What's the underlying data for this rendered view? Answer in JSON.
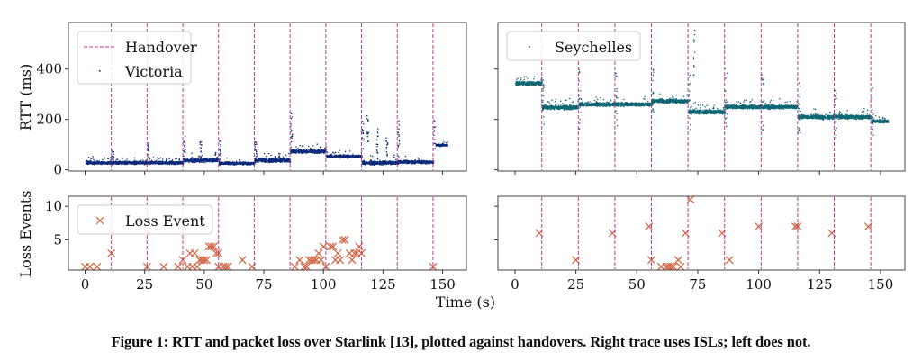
{
  "colors": {
    "handover": "#c0398f",
    "victoria": "#0b2a7a",
    "seychelles": "#0a6673",
    "loss": "#d1603d",
    "axis": "#444444"
  },
  "caption": "Figure 1: RTT and packet loss over Starlink [13], plotted against handovers. Right trace uses ISLs; left does not.",
  "chart_data": [
    {
      "type": "scatter",
      "panel": "top-left",
      "ylabel": "RTT (ms)",
      "xlim": [
        -7,
        160
      ],
      "ylim": [
        -5,
        585
      ],
      "yticks": [
        "0",
        "200",
        "400"
      ],
      "ytick_values": [
        0,
        200,
        400
      ],
      "xtick_values": [
        0,
        25,
        50,
        75,
        100,
        125,
        150
      ],
      "legend": {
        "position": "top-left",
        "entries": [
          "Handover",
          "Victoria"
        ]
      },
      "handovers": [
        11,
        26,
        41,
        56,
        71,
        86,
        101,
        116,
        131,
        146
      ],
      "series": [
        {
          "name": "Victoria",
          "segments": [
            {
              "x0": 0,
              "x1": 41,
              "base": 30,
              "spread": 15
            },
            {
              "x0": 41,
              "x1": 56,
              "base": 40,
              "spread": 20
            },
            {
              "x0": 56,
              "x1": 71,
              "base": 28,
              "spread": 14
            },
            {
              "x0": 71,
              "x1": 86,
              "base": 40,
              "spread": 22
            },
            {
              "x0": 86,
              "x1": 101,
              "base": 75,
              "spread": 18
            },
            {
              "x0": 101,
              "x1": 116,
              "base": 55,
              "spread": 16
            },
            {
              "x0": 116,
              "x1": 131,
              "base": 30,
              "spread": 20
            },
            {
              "x0": 131,
              "x1": 146,
              "base": 33,
              "spread": 16
            },
            {
              "x0": 147,
              "x1": 152,
              "base": 100,
              "spread": 10
            }
          ],
          "spikes": [
            [
              11,
              80
            ],
            [
              26,
              110
            ],
            [
              41,
              140
            ],
            [
              48,
              125
            ],
            [
              56,
              130
            ],
            [
              71,
              115
            ],
            [
              86,
              240
            ],
            [
              116,
              200
            ],
            [
              118,
              220
            ],
            [
              122,
              170
            ],
            [
              126,
              140
            ],
            [
              131,
              230
            ],
            [
              146,
              205
            ]
          ]
        }
      ]
    },
    {
      "type": "scatter",
      "panel": "top-right",
      "xlim": [
        -7,
        160
      ],
      "ylim": [
        -5,
        585
      ],
      "ytick_values": [
        0,
        200,
        400
      ],
      "xtick_values": [
        0,
        25,
        50,
        75,
        100,
        125,
        150
      ],
      "legend": {
        "position": "top-left",
        "entries": [
          "Seychelles"
        ]
      },
      "handovers": [
        11,
        26,
        41,
        56,
        71,
        86,
        101,
        116,
        131,
        146
      ],
      "series": [
        {
          "name": "Seychelles",
          "segments": [
            {
              "x0": 0,
              "x1": 11,
              "base": 345,
              "spread": 22
            },
            {
              "x0": 11,
              "x1": 26,
              "base": 250,
              "spread": 22
            },
            {
              "x0": 26,
              "x1": 56,
              "base": 262,
              "spread": 20
            },
            {
              "x0": 56,
              "x1": 71,
              "base": 275,
              "spread": 20
            },
            {
              "x0": 71,
              "x1": 86,
              "base": 232,
              "spread": 22
            },
            {
              "x0": 86,
              "x1": 116,
              "base": 252,
              "spread": 20
            },
            {
              "x0": 116,
              "x1": 146,
              "base": 212,
              "spread": 22
            },
            {
              "x0": 146,
              "x1": 153,
              "base": 195,
              "spread": 18
            }
          ],
          "spikes": [
            [
              11,
              390
            ],
            [
              26,
              400
            ],
            [
              41,
              400
            ],
            [
              56,
              410
            ],
            [
              71,
              400
            ],
            [
              73,
              560
            ],
            [
              86,
              430
            ],
            [
              101,
              390
            ],
            [
              116,
              350
            ],
            [
              131,
              320
            ],
            [
              146,
              340
            ]
          ]
        }
      ]
    },
    {
      "type": "scatter",
      "panel": "bottom-left",
      "xlabel": "Time (s)",
      "ylabel": "Loss Events",
      "xlim": [
        -7,
        160
      ],
      "ylim": [
        0.5,
        11.5
      ],
      "yticks": [
        "5",
        "10"
      ],
      "ytick_values": [
        5,
        10
      ],
      "xticks": [
        "0",
        "25",
        "50",
        "75",
        "100",
        "125",
        "150"
      ],
      "xtick_values": [
        0,
        25,
        50,
        75,
        100,
        125,
        150
      ],
      "legend": {
        "position": "top-left",
        "entries": [
          "Loss Event"
        ]
      },
      "handovers": [
        11,
        26,
        41,
        56,
        71,
        86,
        101,
        116,
        131,
        146
      ],
      "series": [
        {
          "name": "Loss Event",
          "points": [
            [
              0,
              1
            ],
            [
              2,
              1
            ],
            [
              5,
              1
            ],
            [
              11,
              3
            ],
            [
              26,
              1
            ],
            [
              33,
              1
            ],
            [
              39,
              1
            ],
            [
              41,
              2
            ],
            [
              43,
              1
            ],
            [
              44,
              3
            ],
            [
              45,
              1
            ],
            [
              46,
              3
            ],
            [
              47,
              1
            ],
            [
              48,
              2
            ],
            [
              49,
              2
            ],
            [
              50,
              2
            ],
            [
              51,
              2
            ],
            [
              52,
              4
            ],
            [
              53,
              4
            ],
            [
              54,
              4
            ],
            [
              55,
              3
            ],
            [
              56,
              3
            ],
            [
              56,
              1
            ],
            [
              58,
              1
            ],
            [
              59,
              1
            ],
            [
              60,
              1
            ],
            [
              66,
              2
            ],
            [
              70,
              1
            ],
            [
              88,
              1
            ],
            [
              90,
              2
            ],
            [
              92,
              1
            ],
            [
              93,
              1
            ],
            [
              94,
              2
            ],
            [
              95,
              2
            ],
            [
              96,
              2
            ],
            [
              97,
              2
            ],
            [
              98,
              3
            ],
            [
              99,
              2
            ],
            [
              100,
              4
            ],
            [
              101,
              1
            ],
            [
              103,
              4
            ],
            [
              104,
              4
            ],
            [
              105,
              2
            ],
            [
              106,
              3
            ],
            [
              107,
              2
            ],
            [
              108,
              5
            ],
            [
              109,
              5
            ],
            [
              111,
              3
            ],
            [
              112,
              2
            ],
            [
              113,
              3
            ],
            [
              114,
              3
            ],
            [
              115,
              4
            ],
            [
              116,
              3
            ],
            [
              146,
              1
            ]
          ]
        }
      ]
    },
    {
      "type": "scatter",
      "panel": "bottom-right",
      "xlim": [
        -7,
        160
      ],
      "ylim": [
        0.5,
        11.5
      ],
      "ytick_values": [
        5,
        10
      ],
      "xticks": [
        "0",
        "25",
        "50",
        "75",
        "100",
        "125",
        "150"
      ],
      "xtick_values": [
        0,
        25,
        50,
        75,
        100,
        125,
        150
      ],
      "handovers": [
        11,
        26,
        41,
        56,
        71,
        86,
        101,
        116,
        131,
        146
      ],
      "series": [
        {
          "name": "Loss Event",
          "points": [
            [
              10,
              6
            ],
            [
              25,
              2
            ],
            [
              40,
              6
            ],
            [
              55,
              7
            ],
            [
              56,
              2
            ],
            [
              60,
              1
            ],
            [
              62,
              1
            ],
            [
              63,
              1
            ],
            [
              64,
              1
            ],
            [
              65,
              1
            ],
            [
              67,
              2
            ],
            [
              68,
              1
            ],
            [
              70,
              6
            ],
            [
              72,
              11
            ],
            [
              85,
              6
            ],
            [
              88,
              2
            ],
            [
              100,
              7
            ],
            [
              115,
              7
            ],
            [
              116,
              7
            ],
            [
              130,
              6
            ],
            [
              145,
              7
            ]
          ]
        }
      ]
    }
  ]
}
